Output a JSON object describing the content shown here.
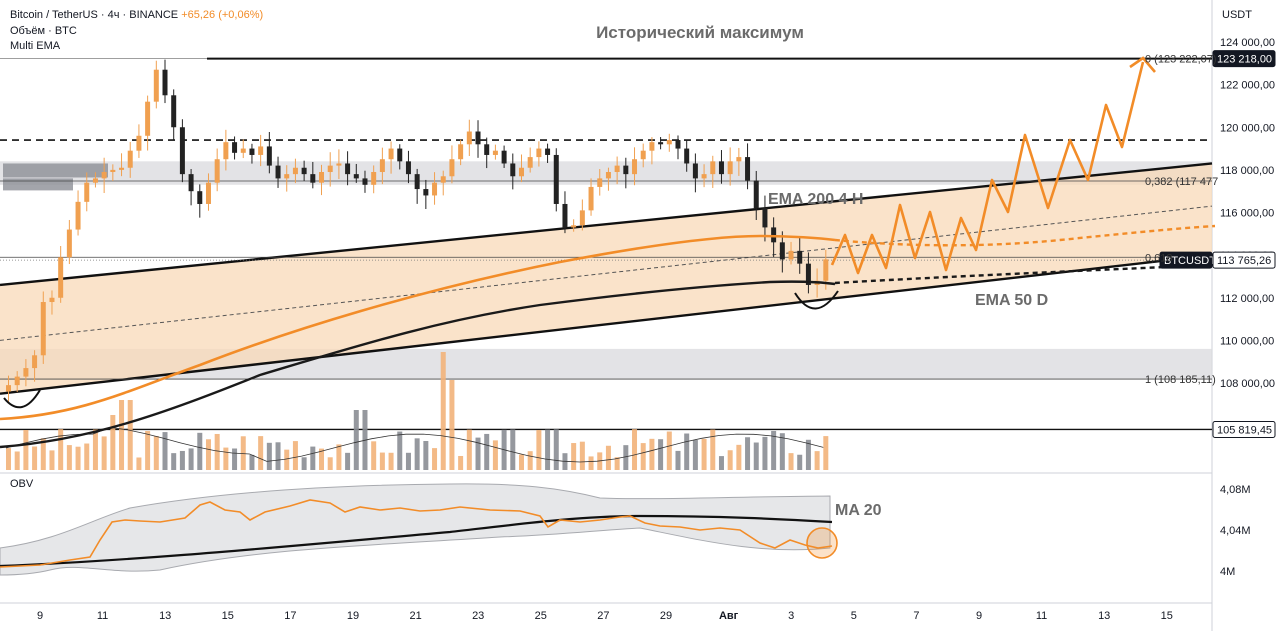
{
  "header": {
    "symbol": "Bitcoin / TetherUS · 4ч · BINANCE",
    "change": "+65,26 (+0,06%)",
    "volume_label": "Объём · BTC",
    "indicator": "Multi EMA"
  },
  "currency": "USDT",
  "obv_label": "OBV",
  "annotations": {
    "ath": "Исторический максимум",
    "ema200": "EMA 200 4 H",
    "ema50": "EMA 50 D",
    "ma20": "MA 20"
  },
  "colors": {
    "orange": "#f28c28",
    "channel_fill": "#f8d9b8",
    "zone_gray": "#d9dadd",
    "dark_line": "#1e1e1e",
    "up_candle": "#f0a050",
    "down_candle": "#222222"
  },
  "chart_data": {
    "type": "candlestick",
    "price_axis": {
      "ticks": [
        108000,
        110000,
        112000,
        114000,
        116000,
        118000,
        120000,
        122000,
        124000
      ],
      "tick_labels": [
        "108 000,00",
        "110 000,00",
        "112 000,00",
        "114 000,00",
        "116 000,00",
        "118 000,00",
        "120 000,00",
        "122 000,00",
        "124 000,00"
      ],
      "range": [
        103800,
        125000
      ]
    },
    "obv_axis": {
      "ticks": [
        4.0,
        4.04,
        4.08
      ],
      "tick_labels": [
        "4M",
        "4,04M",
        "4,08M"
      ]
    },
    "x_axis": {
      "tick_labels": [
        "9",
        "11",
        "13",
        "15",
        "17",
        "19",
        "21",
        "23",
        "25",
        "27",
        "29",
        "Авг",
        "3",
        "5",
        "7",
        "9",
        "11",
        "13",
        "15"
      ]
    },
    "price_tags": [
      {
        "label": "123 218,00",
        "value": 123218,
        "style": "dark"
      },
      {
        "label": "BTCUSDT",
        "value": 113765.26,
        "style": "dark"
      },
      {
        "label": "113 765,26",
        "value": 113765.26,
        "style": "outline"
      },
      {
        "label": "105 819,45",
        "value": 105819.45,
        "style": "outline"
      }
    ],
    "fib_labels": [
      {
        "label": "0 (123 222,07)",
        "value": 123222
      },
      {
        "label": "0,382 (117 477",
        "value": 117477
      },
      {
        "label": "0,618",
        "value": 113900
      },
      {
        "label": "1 (108 185,11)",
        "value": 108185
      }
    ],
    "levels": [
      {
        "value": 123218,
        "style": "solid"
      },
      {
        "value": 119400,
        "style": "dashed"
      },
      {
        "value": 113900,
        "style": "solid-thin"
      },
      {
        "value": 105819,
        "style": "solid"
      }
    ],
    "zones": [
      {
        "from": 117300,
        "to": 118400
      },
      {
        "from": 108200,
        "to": 109600
      }
    ],
    "close_path": [
      107900,
      108300,
      108700,
      109300,
      111800,
      112000,
      113900,
      115200,
      116500,
      117400,
      117600,
      117900,
      118000,
      118100,
      118900,
      119600,
      121200,
      122700,
      121500,
      120000,
      117800,
      117000,
      116400,
      117400,
      118500,
      119300,
      118800,
      119000,
      118700,
      119100,
      118200,
      117600,
      117800,
      118100,
      117800,
      117400,
      117900,
      118200,
      118300,
      117800,
      117600,
      117300,
      117900,
      118500,
      119000,
      118400,
      117800,
      117100,
      116800,
      117400,
      117700,
      118500,
      119200,
      119800,
      119200,
      118700,
      118900,
      118300,
      117700,
      118100,
      118600,
      119000,
      118700,
      116400,
      115300,
      115400,
      116100,
      117200,
      117600,
      117900,
      118200,
      117800,
      118500,
      118900,
      119300,
      119200,
      119400,
      119000,
      118300,
      117600,
      117800,
      118400,
      117800,
      118400,
      118600,
      117500,
      116200,
      115300,
      114600,
      113800,
      114200,
      113600,
      112600,
      112800,
      113800
    ]
  }
}
